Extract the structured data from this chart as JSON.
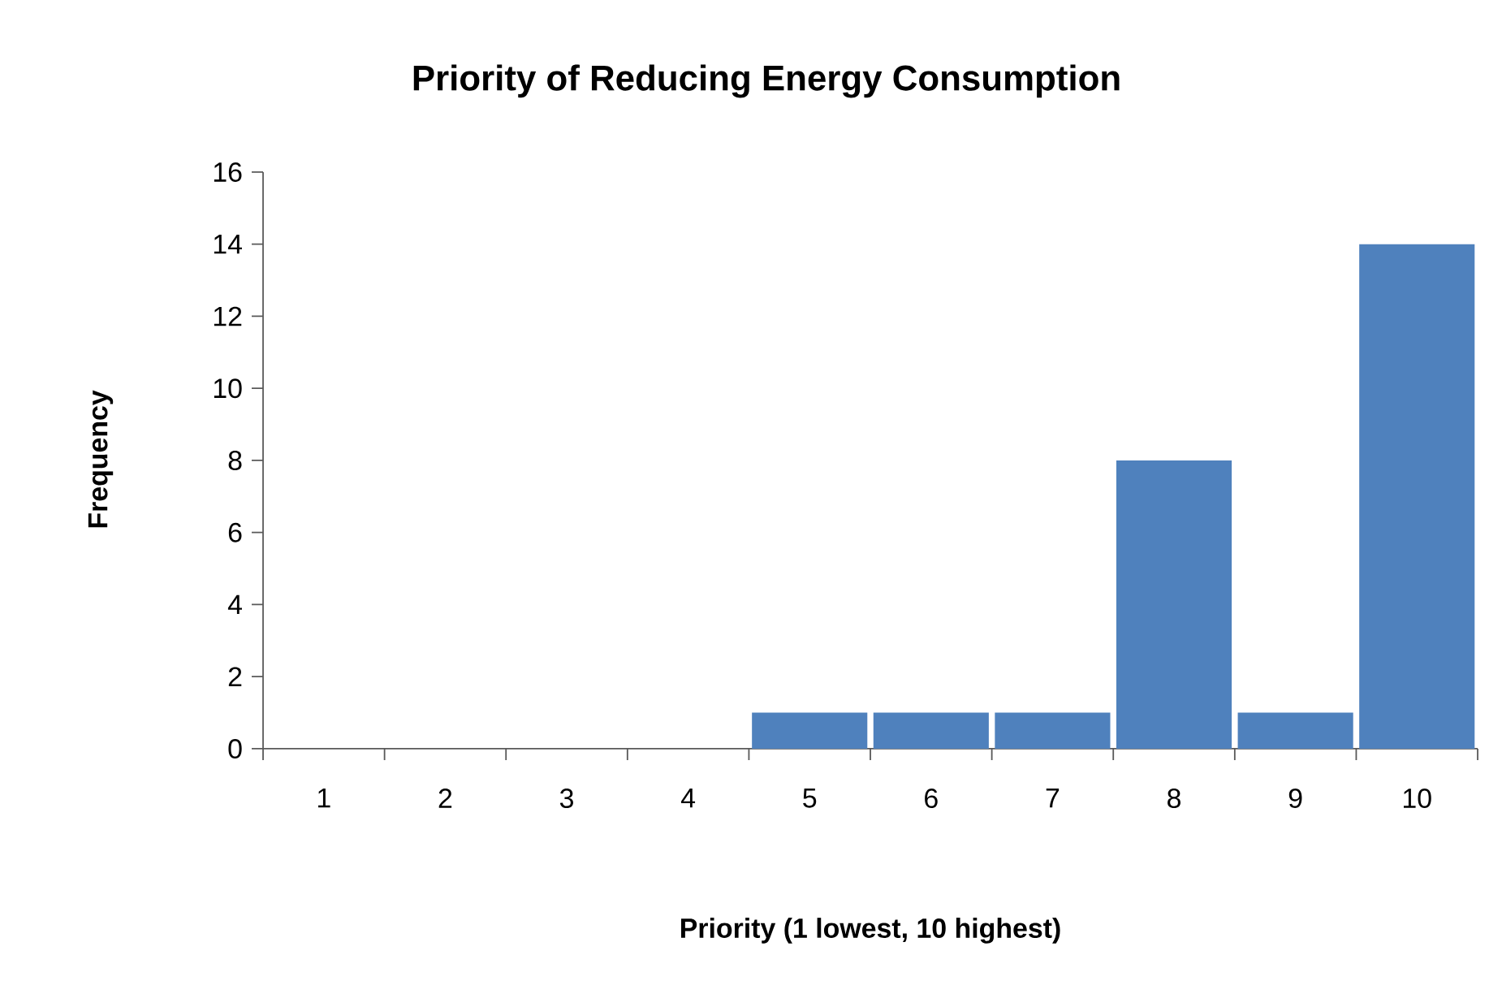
{
  "chart_data": {
    "type": "bar",
    "title": "Priority of Reducing Energy Consumption",
    "xlabel": "Priority (1 lowest, 10 highest)",
    "ylabel": "Frequency",
    "categories": [
      "1",
      "2",
      "3",
      "4",
      "5",
      "6",
      "7",
      "8",
      "9",
      "10"
    ],
    "values": [
      0,
      0,
      0,
      0,
      1,
      1,
      1,
      8,
      1,
      14
    ],
    "color": "#4f81bd",
    "ylim": [
      0,
      16
    ],
    "yticks": [
      0,
      2,
      4,
      6,
      8,
      10,
      12,
      14,
      16
    ]
  }
}
